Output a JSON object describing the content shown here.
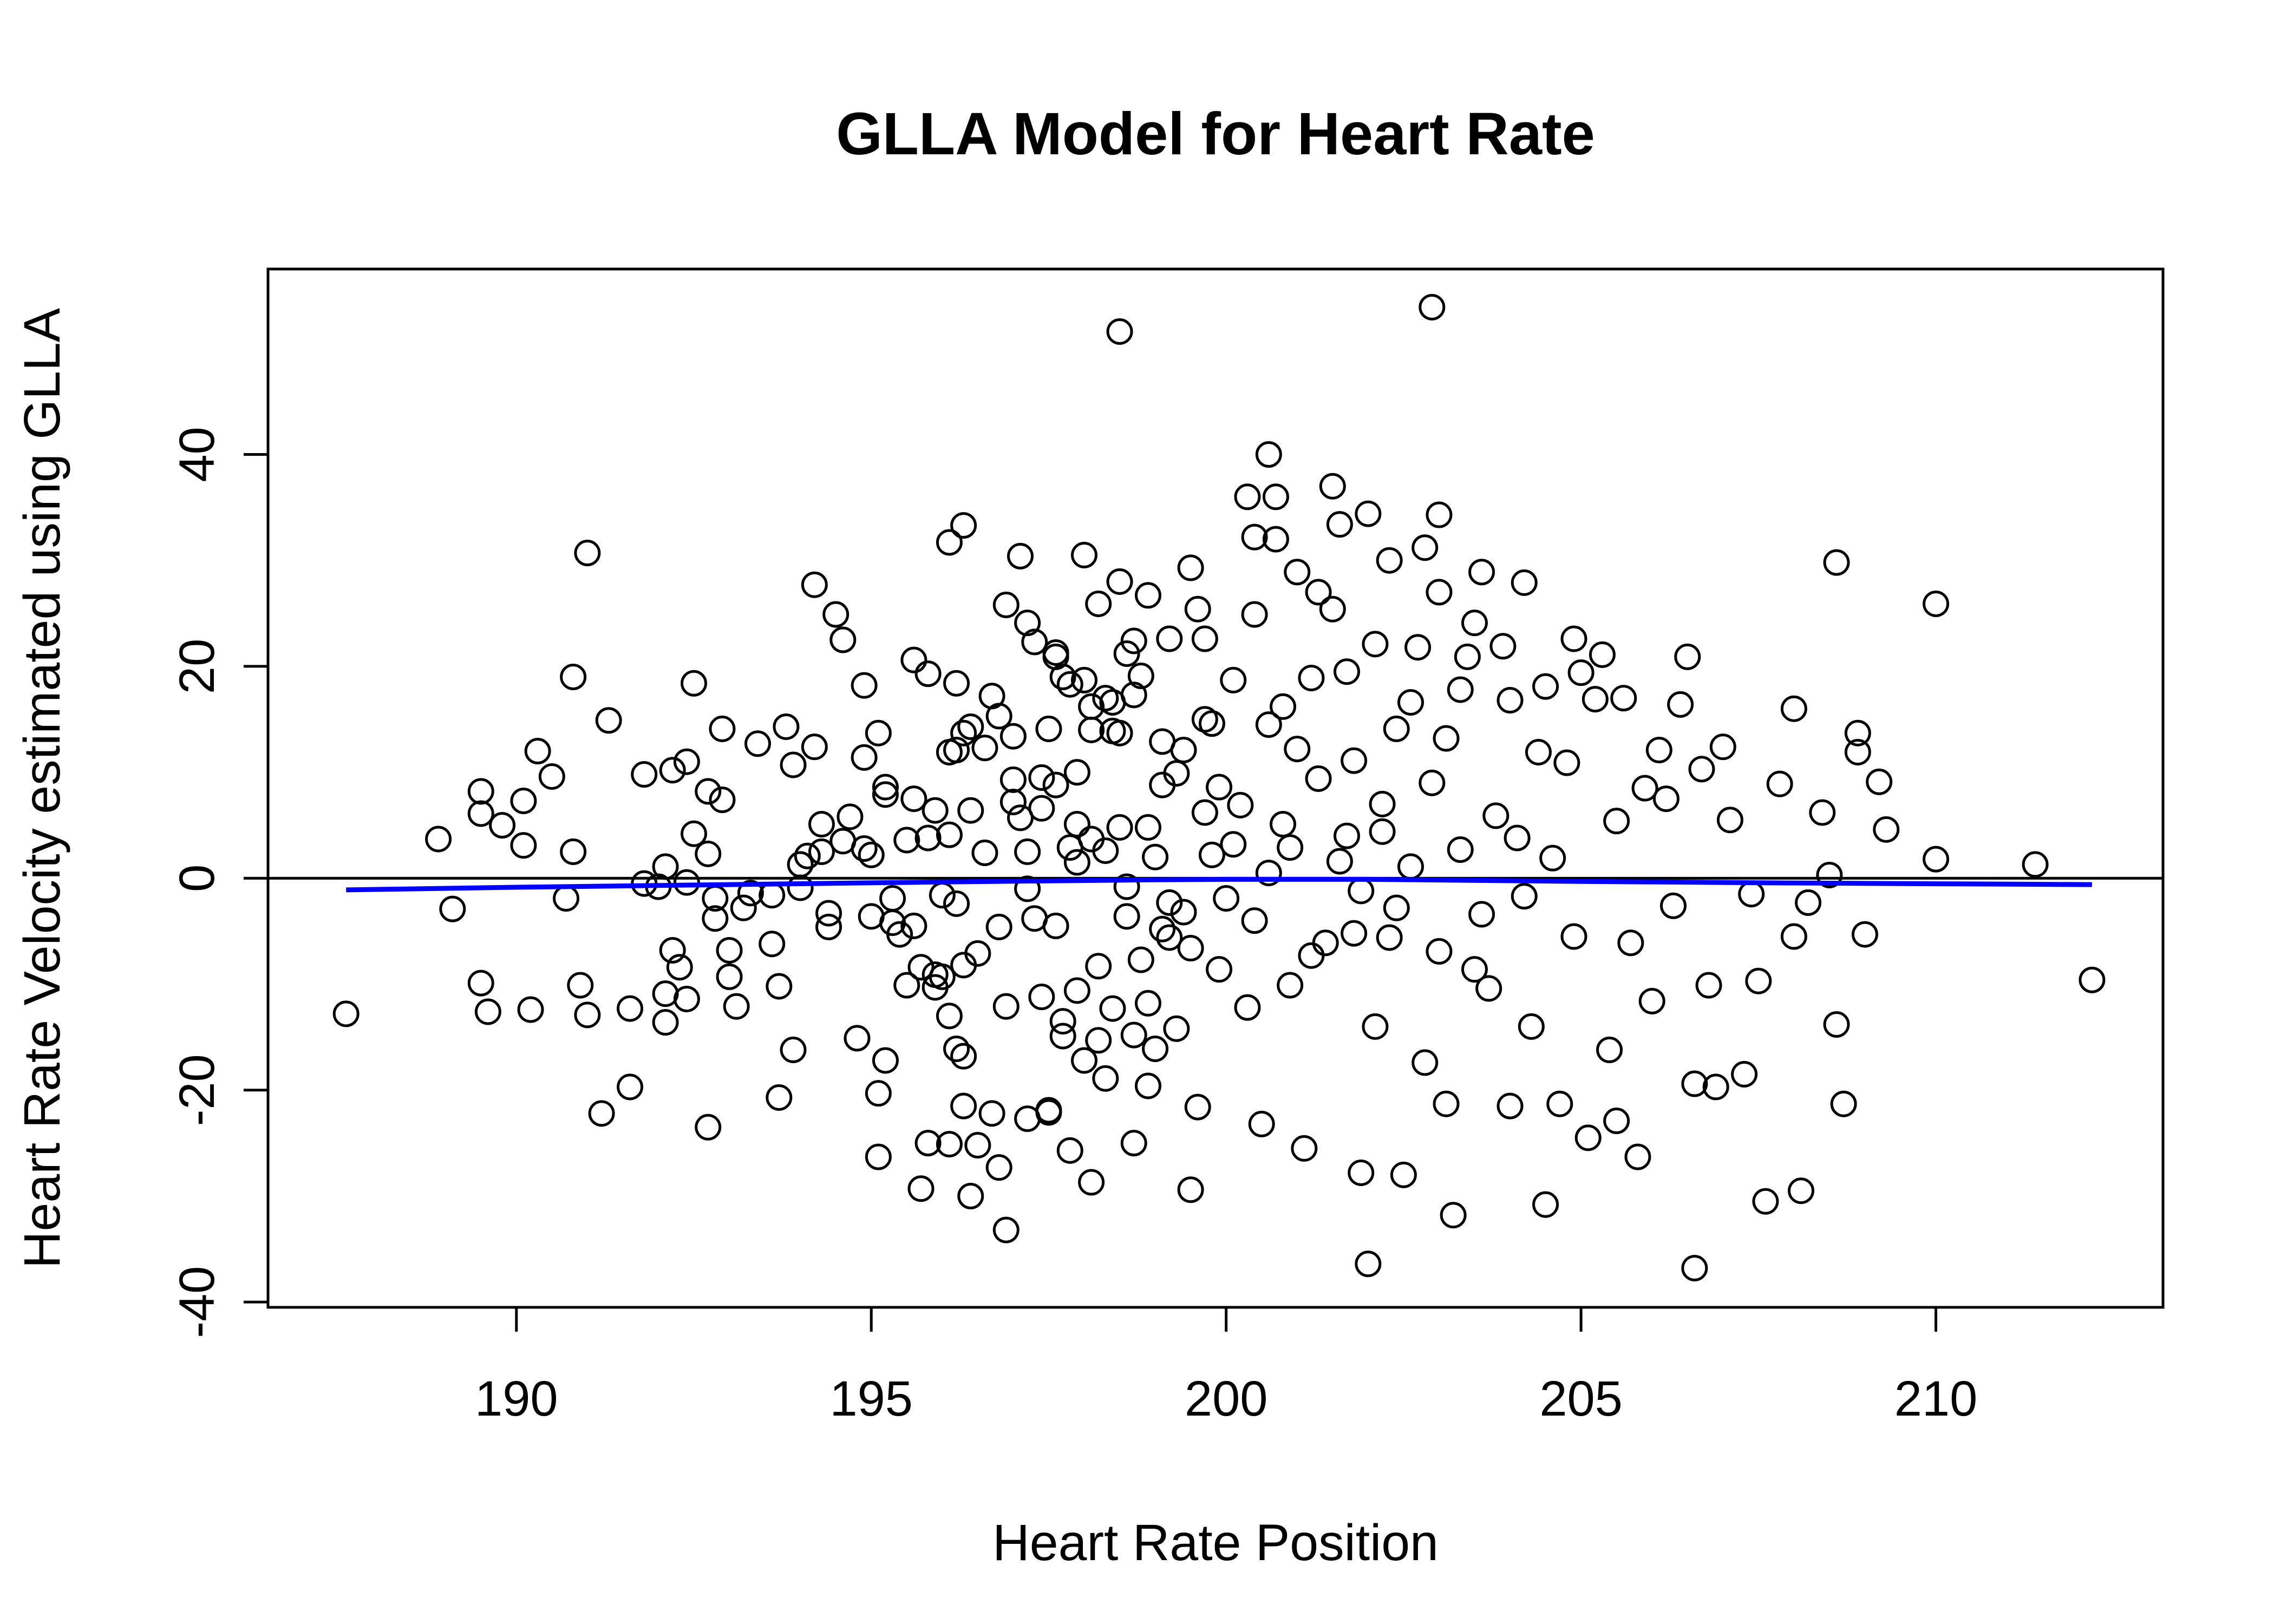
{
  "chart_data": {
    "type": "scatter",
    "title": "GLLA Model for Heart Rate",
    "xlabel": "Heart Rate Position",
    "ylabel": "Heart Rate Velocity estimated using GLLA",
    "xlim": [
      186.5,
      213.2
    ],
    "ylim": [
      -40.5,
      57.5
    ],
    "x_ticks": [
      190,
      195,
      200,
      205,
      210
    ],
    "y_ticks": [
      -40,
      -20,
      0,
      20,
      40
    ],
    "x_tick_labels": [
      "190",
      "195",
      "200",
      "205",
      "210"
    ],
    "y_tick_labels": [
      "-40",
      "-20",
      "0",
      "20",
      "40"
    ],
    "grid": false,
    "legend": "none",
    "reference_line": {
      "y": 0,
      "color": "#000000"
    },
    "fit_line": {
      "color": "#0000ff",
      "x": [
        187.6,
        190,
        193,
        196,
        199,
        200,
        202,
        205,
        208,
        212.2
      ],
      "y": [
        -1.1,
        -0.85,
        -0.6,
        -0.35,
        -0.15,
        -0.1,
        -0.1,
        -0.3,
        -0.45,
        -0.6
      ]
    },
    "points": [
      [
        187.6,
        -12.8
      ],
      [
        188.9,
        3.7
      ],
      [
        189.1,
        -2.9
      ],
      [
        189.5,
        -9.9
      ],
      [
        189.5,
        8.2
      ],
      [
        189.5,
        6.1
      ],
      [
        189.6,
        -12.6
      ],
      [
        189.8,
        5.0
      ],
      [
        190.1,
        7.3
      ],
      [
        190.1,
        3.1
      ],
      [
        190.2,
        -12.4
      ],
      [
        190.3,
        12.0
      ],
      [
        190.5,
        9.6
      ],
      [
        190.7,
        -1.9
      ],
      [
        190.8,
        19.0
      ],
      [
        190.8,
        2.5
      ],
      [
        190.9,
        -10.1
      ],
      [
        191.0,
        30.7
      ],
      [
        191.0,
        -12.9
      ],
      [
        191.3,
        14.9
      ],
      [
        191.2,
        -22.2
      ],
      [
        191.6,
        -19.7
      ],
      [
        191.6,
        -12.3
      ],
      [
        191.8,
        9.8
      ],
      [
        191.8,
        -0.5
      ],
      [
        192.0,
        -0.8
      ],
      [
        192.1,
        -10.9
      ],
      [
        192.1,
        -13.6
      ],
      [
        192.1,
        1.1
      ],
      [
        192.2,
        10.2
      ],
      [
        192.2,
        -6.8
      ],
      [
        192.3,
        -8.4
      ],
      [
        192.4,
        -0.4
      ],
      [
        192.4,
        -11.4
      ],
      [
        192.4,
        11.0
      ],
      [
        192.5,
        4.2
      ],
      [
        192.5,
        18.4
      ],
      [
        192.7,
        -23.5
      ],
      [
        192.7,
        8.2
      ],
      [
        192.7,
        2.3
      ],
      [
        192.8,
        -1.9
      ],
      [
        192.8,
        -3.8
      ],
      [
        192.9,
        7.4
      ],
      [
        192.9,
        14.1
      ],
      [
        193.0,
        -6.8
      ],
      [
        193.0,
        -9.3
      ],
      [
        193.1,
        -12.1
      ],
      [
        193.2,
        -2.8
      ],
      [
        193.3,
        -1.4
      ],
      [
        193.4,
        12.7
      ],
      [
        193.6,
        -1.6
      ],
      [
        193.6,
        -6.2
      ],
      [
        193.7,
        -20.7
      ],
      [
        193.7,
        -10.2
      ],
      [
        193.8,
        14.3
      ],
      [
        193.9,
        -16.2
      ],
      [
        193.9,
        10.7
      ],
      [
        194.0,
        1.3
      ],
      [
        194.0,
        -0.9
      ],
      [
        194.1,
        2.1
      ],
      [
        194.2,
        27.7
      ],
      [
        194.2,
        12.4
      ],
      [
        194.3,
        5.1
      ],
      [
        194.3,
        2.5
      ],
      [
        194.4,
        -3.3
      ],
      [
        194.4,
        -4.6
      ],
      [
        194.5,
        24.9
      ],
      [
        194.6,
        22.5
      ],
      [
        194.6,
        3.5
      ],
      [
        194.7,
        5.8
      ],
      [
        194.8,
        -15.1
      ],
      [
        194.9,
        11.4
      ],
      [
        194.9,
        18.2
      ],
      [
        194.9,
        2.8
      ],
      [
        195.0,
        2.2
      ],
      [
        195.0,
        -3.6
      ],
      [
        195.1,
        13.7
      ],
      [
        195.1,
        -20.3
      ],
      [
        195.1,
        -26.3
      ],
      [
        195.2,
        -17.2
      ],
      [
        195.2,
        8.6
      ],
      [
        195.2,
        7.9
      ],
      [
        195.3,
        -1.9
      ],
      [
        195.3,
        -4.2
      ],
      [
        195.4,
        -5.3
      ],
      [
        195.5,
        3.6
      ],
      [
        195.5,
        -10.1
      ],
      [
        195.6,
        20.6
      ],
      [
        195.6,
        -4.5
      ],
      [
        195.6,
        7.5
      ],
      [
        195.7,
        -8.4
      ],
      [
        195.7,
        -29.3
      ],
      [
        195.8,
        -25.0
      ],
      [
        195.8,
        3.8
      ],
      [
        195.8,
        19.3
      ],
      [
        195.9,
        6.4
      ],
      [
        195.9,
        -9.1
      ],
      [
        195.9,
        -10.3
      ],
      [
        196.0,
        -1.6
      ],
      [
        196.0,
        -9.3
      ],
      [
        196.1,
        11.9
      ],
      [
        196.1,
        31.7
      ],
      [
        196.1,
        4.1
      ],
      [
        196.1,
        -13.0
      ],
      [
        196.1,
        -25.1
      ],
      [
        196.2,
        -16.1
      ],
      [
        196.2,
        12.1
      ],
      [
        196.2,
        -2.4
      ],
      [
        196.2,
        18.4
      ],
      [
        196.3,
        13.7
      ],
      [
        196.3,
        33.3
      ],
      [
        196.3,
        -16.8
      ],
      [
        196.3,
        -8.2
      ],
      [
        196.3,
        -21.5
      ],
      [
        196.4,
        14.3
      ],
      [
        196.4,
        6.4
      ],
      [
        196.4,
        -30.0
      ],
      [
        196.5,
        -7.1
      ],
      [
        196.5,
        -25.2
      ],
      [
        196.6,
        12.3
      ],
      [
        196.6,
        2.4
      ],
      [
        196.7,
        -22.2
      ],
      [
        196.7,
        17.2
      ],
      [
        196.8,
        15.3
      ],
      [
        196.8,
        -4.6
      ],
      [
        196.8,
        -27.3
      ],
      [
        196.9,
        25.8
      ],
      [
        196.9,
        -12.1
      ],
      [
        196.9,
        -33.2
      ],
      [
        197.0,
        9.3
      ],
      [
        197.0,
        13.4
      ],
      [
        197.0,
        7.2
      ],
      [
        197.1,
        30.4
      ],
      [
        197.1,
        5.7
      ],
      [
        197.2,
        -1.0
      ],
      [
        197.2,
        2.5
      ],
      [
        197.2,
        -22.7
      ],
      [
        197.2,
        24.1
      ],
      [
        197.3,
        22.3
      ],
      [
        197.3,
        -3.8
      ],
      [
        197.4,
        6.6
      ],
      [
        197.4,
        9.5
      ],
      [
        197.4,
        -11.2
      ],
      [
        197.5,
        -21.9
      ],
      [
        197.5,
        14.1
      ],
      [
        197.5,
        -22.1
      ],
      [
        197.6,
        20.9
      ],
      [
        197.6,
        21.3
      ],
      [
        197.6,
        -4.5
      ],
      [
        197.6,
        8.8
      ],
      [
        197.7,
        -13.5
      ],
      [
        197.7,
        -14.9
      ],
      [
        197.7,
        19.0
      ],
      [
        197.8,
        -25.7
      ],
      [
        197.8,
        18.3
      ],
      [
        197.8,
        2.9
      ],
      [
        197.9,
        10.0
      ],
      [
        197.9,
        5.1
      ],
      [
        197.9,
        -10.6
      ],
      [
        198.0,
        30.5
      ],
      [
        198.0,
        18.7
      ],
      [
        198.0,
        -17.2
      ],
      [
        198.1,
        14.0
      ],
      [
        198.1,
        3.7
      ],
      [
        198.1,
        16.2
      ],
      [
        198.1,
        -28.7
      ],
      [
        198.2,
        -15.3
      ],
      [
        198.2,
        25.9
      ],
      [
        198.3,
        -18.9
      ],
      [
        198.3,
        2.6
      ],
      [
        198.3,
        17.0
      ],
      [
        198.4,
        -12.3
      ],
      [
        198.4,
        13.9
      ],
      [
        198.4,
        16.6
      ],
      [
        198.5,
        28.0
      ],
      [
        198.5,
        4.8
      ],
      [
        198.5,
        13.7
      ],
      [
        198.5,
        51.6
      ],
      [
        198.6,
        -3.6
      ],
      [
        198.6,
        21.2
      ],
      [
        198.7,
        22.4
      ],
      [
        198.7,
        -14.8
      ],
      [
        198.7,
        17.3
      ],
      [
        198.7,
        -25.0
      ],
      [
        198.8,
        19.1
      ],
      [
        198.8,
        -7.7
      ],
      [
        198.9,
        26.7
      ],
      [
        198.9,
        -19.6
      ],
      [
        198.9,
        4.8
      ],
      [
        199.0,
        2.0
      ],
      [
        199.0,
        -16.1
      ],
      [
        199.1,
        12.9
      ],
      [
        199.1,
        -4.8
      ],
      [
        199.1,
        8.8
      ],
      [
        199.2,
        -5.6
      ],
      [
        199.2,
        22.6
      ],
      [
        199.3,
        9.9
      ],
      [
        199.3,
        -14.2
      ],
      [
        199.4,
        12.1
      ],
      [
        199.4,
        -3.2
      ],
      [
        199.5,
        29.3
      ],
      [
        199.5,
        -29.4
      ],
      [
        199.6,
        25.4
      ],
      [
        199.6,
        -21.6
      ],
      [
        199.7,
        22.6
      ],
      [
        199.7,
        15.0
      ],
      [
        199.8,
        14.6
      ],
      [
        199.8,
        2.2
      ],
      [
        199.9,
        8.6
      ],
      [
        199.9,
        -8.6
      ],
      [
        200.0,
        -1.9
      ],
      [
        200.1,
        3.2
      ],
      [
        200.1,
        18.7
      ],
      [
        200.2,
        6.9
      ],
      [
        200.3,
        -12.2
      ],
      [
        200.3,
        36.0
      ],
      [
        200.4,
        32.2
      ],
      [
        200.4,
        24.9
      ],
      [
        200.5,
        -23.2
      ],
      [
        200.6,
        40.0
      ],
      [
        200.6,
        14.5
      ],
      [
        200.7,
        36.0
      ],
      [
        200.7,
        32.0
      ],
      [
        200.8,
        5.1
      ],
      [
        200.8,
        16.2
      ],
      [
        200.9,
        -10.1
      ],
      [
        201.0,
        28.9
      ],
      [
        201.0,
        12.2
      ],
      [
        201.1,
        -25.5
      ],
      [
        201.2,
        18.9
      ],
      [
        201.3,
        27.0
      ],
      [
        201.3,
        9.4
      ],
      [
        201.4,
        -6.1
      ],
      [
        201.5,
        37.0
      ],
      [
        201.5,
        25.4
      ],
      [
        201.6,
        33.4
      ],
      [
        201.7,
        19.5
      ],
      [
        201.7,
        4.0
      ],
      [
        201.8,
        11.1
      ],
      [
        201.9,
        -27.8
      ],
      [
        202.0,
        34.4
      ],
      [
        202.0,
        -36.4
      ],
      [
        202.1,
        22.1
      ],
      [
        202.1,
        -14.0
      ],
      [
        202.2,
        7.0
      ],
      [
        202.3,
        30.0
      ],
      [
        202.3,
        -5.6
      ],
      [
        202.4,
        14.1
      ],
      [
        202.5,
        -28.0
      ],
      [
        202.6,
        16.6
      ],
      [
        202.6,
        1.1
      ],
      [
        202.7,
        21.8
      ],
      [
        202.8,
        -17.4
      ],
      [
        202.8,
        31.2
      ],
      [
        202.9,
        9.0
      ],
      [
        202.9,
        53.9
      ],
      [
        203.0,
        34.3
      ],
      [
        203.0,
        27.0
      ],
      [
        203.1,
        -21.3
      ],
      [
        203.1,
        13.2
      ],
      [
        203.2,
        -31.8
      ],
      [
        203.3,
        17.8
      ],
      [
        203.4,
        20.9
      ],
      [
        203.5,
        -8.6
      ],
      [
        203.5,
        24.1
      ],
      [
        203.6,
        28.9
      ],
      [
        203.7,
        -10.4
      ],
      [
        203.8,
        5.9
      ],
      [
        203.9,
        21.9
      ],
      [
        204.0,
        16.8
      ],
      [
        204.0,
        -21.5
      ],
      [
        204.1,
        3.8
      ],
      [
        204.2,
        27.9
      ],
      [
        204.3,
        -14.0
      ],
      [
        204.4,
        11.9
      ],
      [
        204.5,
        -30.8
      ],
      [
        204.5,
        18.1
      ],
      [
        204.6,
        1.9
      ],
      [
        204.7,
        -21.3
      ],
      [
        204.8,
        10.9
      ],
      [
        204.9,
        22.6
      ],
      [
        204.9,
        -5.5
      ],
      [
        205.0,
        19.4
      ],
      [
        205.1,
        -24.5
      ],
      [
        205.2,
        16.9
      ],
      [
        205.3,
        21.1
      ],
      [
        205.4,
        -16.2
      ],
      [
        205.5,
        5.4
      ],
      [
        205.5,
        -22.9
      ],
      [
        205.6,
        17.0
      ],
      [
        205.7,
        -6.1
      ],
      [
        205.8,
        -26.3
      ],
      [
        205.9,
        8.5
      ],
      [
        206.0,
        -11.6
      ],
      [
        206.1,
        12.1
      ],
      [
        206.2,
        7.5
      ],
      [
        206.3,
        -2.6
      ],
      [
        206.4,
        16.4
      ],
      [
        206.5,
        20.9
      ],
      [
        206.6,
        -19.4
      ],
      [
        206.6,
        -36.8
      ],
      [
        206.7,
        10.3
      ],
      [
        206.8,
        -10.1
      ],
      [
        206.9,
        -19.7
      ],
      [
        207.0,
        12.4
      ],
      [
        207.1,
        5.5
      ],
      [
        207.3,
        -18.5
      ],
      [
        207.4,
        -1.5
      ],
      [
        207.5,
        -9.7
      ],
      [
        207.6,
        -30.5
      ],
      [
        207.8,
        8.9
      ],
      [
        208.0,
        16.0
      ],
      [
        208.0,
        -5.5
      ],
      [
        208.1,
        -29.5
      ],
      [
        208.2,
        -2.3
      ],
      [
        208.4,
        6.2
      ],
      [
        208.5,
        0.3
      ],
      [
        208.6,
        -13.8
      ],
      [
        208.6,
        29.8
      ],
      [
        208.7,
        -21.3
      ],
      [
        208.9,
        11.9
      ],
      [
        208.9,
        13.7
      ],
      [
        209.0,
        -5.3
      ],
      [
        209.2,
        9.1
      ],
      [
        209.3,
        4.6
      ],
      [
        210.0,
        25.9
      ],
      [
        210.0,
        1.8
      ],
      [
        211.4,
        1.3
      ],
      [
        212.2,
        -9.6
      ],
      [
        198.2,
        -8.3
      ],
      [
        198.9,
        -11.8
      ],
      [
        199.5,
        -6.6
      ],
      [
        200.4,
        -4.0
      ],
      [
        201.2,
        -7.3
      ],
      [
        201.8,
        -5.2
      ],
      [
        202.4,
        -2.8
      ],
      [
        203.0,
        -6.9
      ],
      [
        203.6,
        -3.4
      ],
      [
        204.2,
        -1.7
      ],
      [
        200.9,
        2.9
      ],
      [
        201.6,
        1.6
      ],
      [
        202.2,
        4.4
      ],
      [
        199.7,
        6.2
      ],
      [
        198.6,
        -0.8
      ],
      [
        197.9,
        1.5
      ],
      [
        199.2,
        -2.3
      ],
      [
        200.6,
        0.5
      ],
      [
        201.9,
        -1.2
      ],
      [
        203.3,
        2.7
      ]
    ]
  }
}
